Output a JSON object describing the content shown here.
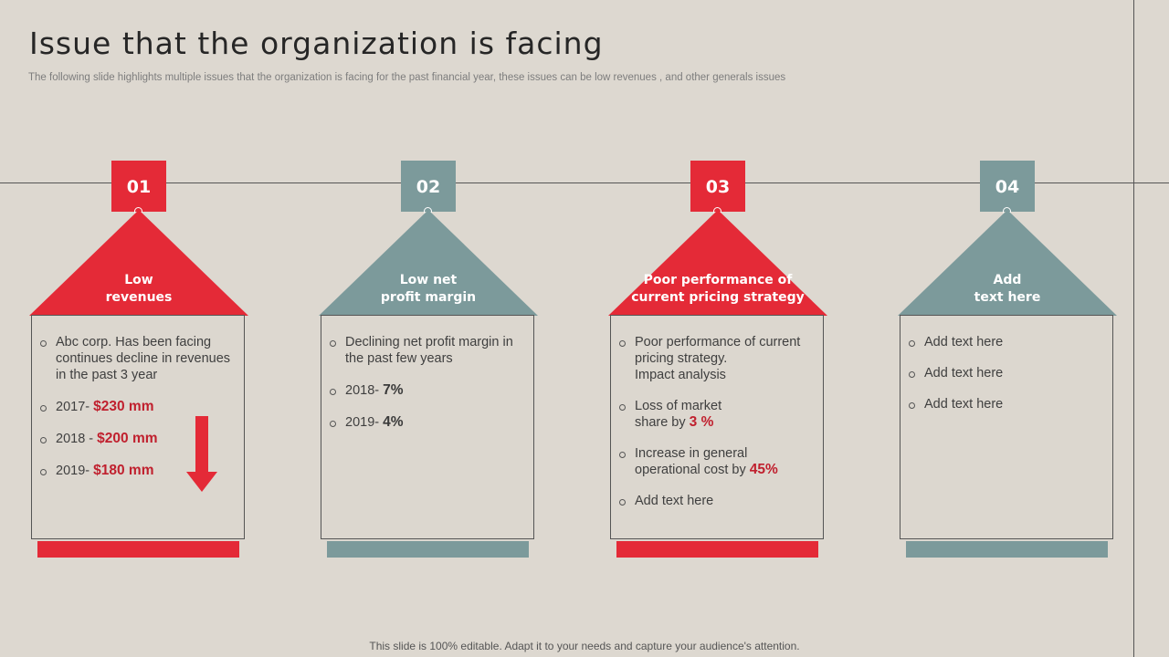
{
  "title": "Issue that the organization is facing",
  "subtitle": "The following slide highlights multiple issues that the organization is facing for the past financial year, these issues can be low revenues , and other generals issues",
  "colors": {
    "red": "#e42a37",
    "teal": "#7c9a9b",
    "value_red": "#c0202e",
    "background": "#ddd8d0"
  },
  "columns": [
    {
      "number": "01",
      "color": "red",
      "heading_line1": "Low",
      "heading_line2": "revenues",
      "items": [
        {
          "text": "Abc corp. Has been facing continues decline in revenues in the past 3 year",
          "value": ""
        },
        {
          "text": "2017- ",
          "value": "$230 mm"
        },
        {
          "text": "2018 - ",
          "value": "$200 mm"
        },
        {
          "text": "2019- ",
          "value": "$180 mm"
        }
      ],
      "icon": "down-arrow-icon"
    },
    {
      "number": "02",
      "color": "teal",
      "heading_line1": "Low net",
      "heading_line2": "profit margin",
      "items": [
        {
          "text": "Declining net profit margin in the past few years",
          "value": ""
        },
        {
          "text": "2018- ",
          "value": "7%"
        },
        {
          "text": "2019- ",
          "value": "4%"
        }
      ]
    },
    {
      "number": "03",
      "color": "red",
      "heading_line1": "Poor performance of",
      "heading_line2": "current pricing strategy",
      "items": [
        {
          "text": "Poor performance of current pricing strategy.",
          "text2": "Impact analysis",
          "value": ""
        },
        {
          "text": "Loss of market share by ",
          "value": "3 %"
        },
        {
          "text": "Increase in general operational  cost by ",
          "value": "45%"
        },
        {
          "text": "Add text here",
          "value": ""
        }
      ]
    },
    {
      "number": "04",
      "color": "teal",
      "heading_line1": "Add",
      "heading_line2": "text here",
      "items": [
        {
          "text": "Add text here",
          "value": ""
        },
        {
          "text": "Add text here",
          "value": ""
        },
        {
          "text": "Add text here",
          "value": ""
        }
      ]
    }
  ],
  "footer": "This slide is 100% editable. Adapt it to your needs and capture your audience's attention."
}
